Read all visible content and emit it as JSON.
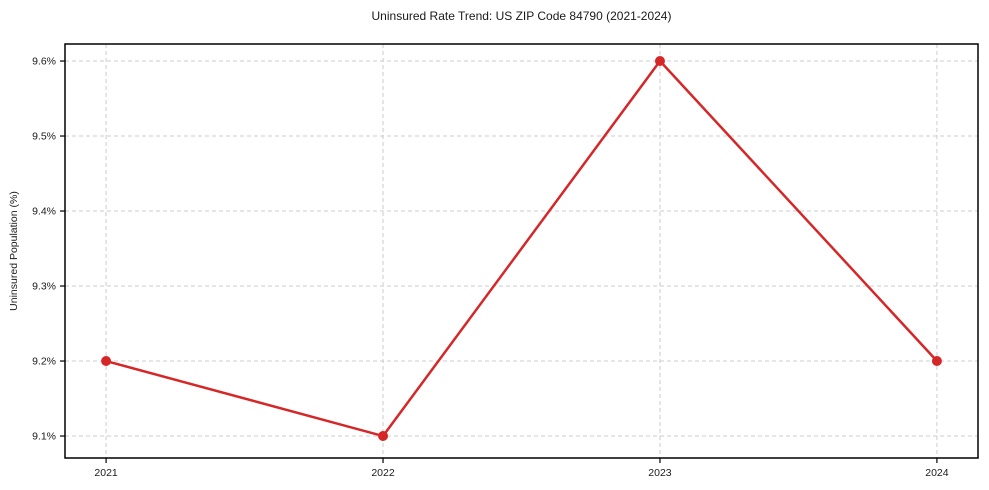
{
  "chart_data": {
    "type": "line",
    "title": "Uninsured Rate Trend: US ZIP Code 84790 (2021-2024)",
    "xlabel": "",
    "ylabel": "Uninsured Population (%)",
    "x": [
      2021,
      2022,
      2023,
      2024
    ],
    "x_tick_labels": [
      "2021",
      "2022",
      "2023",
      "2024"
    ],
    "values": [
      9.2,
      9.1,
      9.6,
      9.2
    ],
    "y_ticks": [
      9.1,
      9.2,
      9.3,
      9.4,
      9.5,
      9.6
    ],
    "y_tick_labels": [
      "9.1%",
      "9.2%",
      "9.3%",
      "9.4%",
      "9.5%",
      "9.6%"
    ],
    "ylim": [
      9.0707,
      9.6227
    ],
    "grid": true,
    "legend": "none",
    "line_color": "#d62728",
    "marker": "circle",
    "grid_color": "#cccccc",
    "spine_color": "#000000"
  }
}
